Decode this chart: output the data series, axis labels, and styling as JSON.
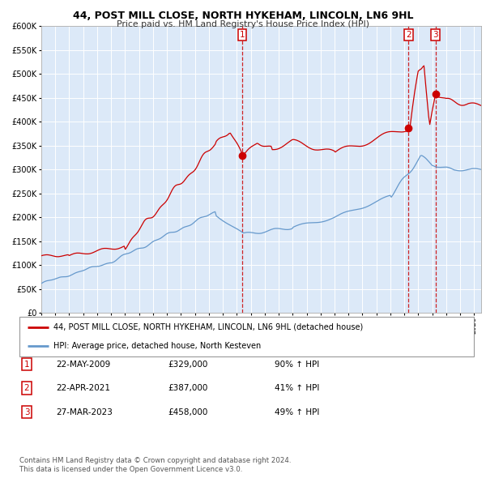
{
  "title": "44, POST MILL CLOSE, NORTH HYKEHAM, LINCOLN, LN6 9HL",
  "subtitle": "Price paid vs. HM Land Registry's House Price Index (HPI)",
  "legend_red": "44, POST MILL CLOSE, NORTH HYKEHAM, LINCOLN, LN6 9HL (detached house)",
  "legend_blue": "HPI: Average price, detached house, North Kesteven",
  "footer1": "Contains HM Land Registry data © Crown copyright and database right 2024.",
  "footer2": "This data is licensed under the Open Government Licence v3.0.",
  "transactions": [
    {
      "num": 1,
      "date": "22-MAY-2009",
      "price": 329000,
      "pct": "90%",
      "dir": "↑"
    },
    {
      "num": 2,
      "date": "22-APR-2021",
      "price": 387000,
      "pct": "41%",
      "dir": "↑"
    },
    {
      "num": 3,
      "date": "27-MAR-2023",
      "price": 458000,
      "pct": "49%",
      "dir": "↑"
    }
  ],
  "transaction_dates_decimal": [
    2009.386,
    2021.308,
    2023.231
  ],
  "transaction_prices": [
    329000,
    387000,
    458000
  ],
  "ylim": [
    0,
    600000
  ],
  "yticks": [
    0,
    50000,
    100000,
    150000,
    200000,
    250000,
    300000,
    350000,
    400000,
    450000,
    500000,
    550000,
    600000
  ],
  "xlim_start": 1995.0,
  "xlim_end": 2026.5,
  "plot_bg": "#dce9f8",
  "grid_color": "#ffffff",
  "red_color": "#cc0000",
  "blue_color": "#6699cc",
  "dashed_color": "#cc0000"
}
